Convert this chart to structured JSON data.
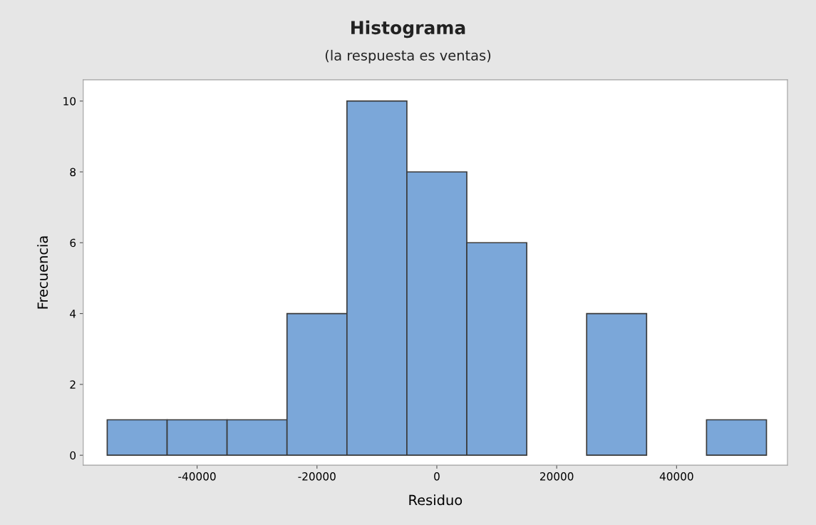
{
  "chart_data": {
    "type": "histogram",
    "title": "Histograma",
    "subtitle": "(la respuesta es ventas)",
    "xlabel": "Residuo",
    "ylabel": "Frecuencia",
    "bins": [
      -55000,
      -45000,
      -35000,
      -25000,
      -15000,
      -5000,
      5000,
      15000,
      25000,
      35000,
      45000,
      55000
    ],
    "values": [
      1,
      1,
      1,
      4,
      10,
      8,
      6,
      0,
      4,
      0,
      1
    ],
    "color": "#7ba7d9",
    "xlim": [
      -59000,
      58500
    ],
    "xticks": [
      -40000,
      -20000,
      0,
      20000,
      40000
    ],
    "ylim": [
      -0.28,
      10.6
    ],
    "yticks": [
      0,
      2,
      4,
      6,
      8,
      10
    ],
    "grid": false
  }
}
